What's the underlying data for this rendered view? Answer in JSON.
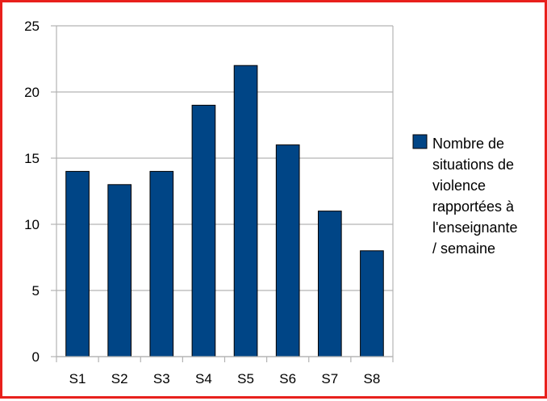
{
  "chart_data": {
    "type": "bar",
    "categories": [
      "S1",
      "S2",
      "S3",
      "S4",
      "S5",
      "S6",
      "S7",
      "S8"
    ],
    "series": [
      {
        "name": "Nombre de situations de violence rapportées à l'enseignante / semaine",
        "values": [
          14,
          13,
          14,
          19,
          22,
          16,
          11,
          8
        ]
      }
    ],
    "legend_lines": [
      "Nombre de",
      "situations de",
      "violence",
      "rapportées à",
      "l'enseignante",
      "/ semaine"
    ],
    "yticks": [
      0,
      5,
      10,
      15,
      20,
      25
    ],
    "ylim": [
      0,
      25
    ],
    "grid": true,
    "legend_position": "right",
    "colors": {
      "bar": "#004586",
      "bar_border": "#000000",
      "grid": "#b3b3b3",
      "frame": "#e8201c"
    }
  }
}
